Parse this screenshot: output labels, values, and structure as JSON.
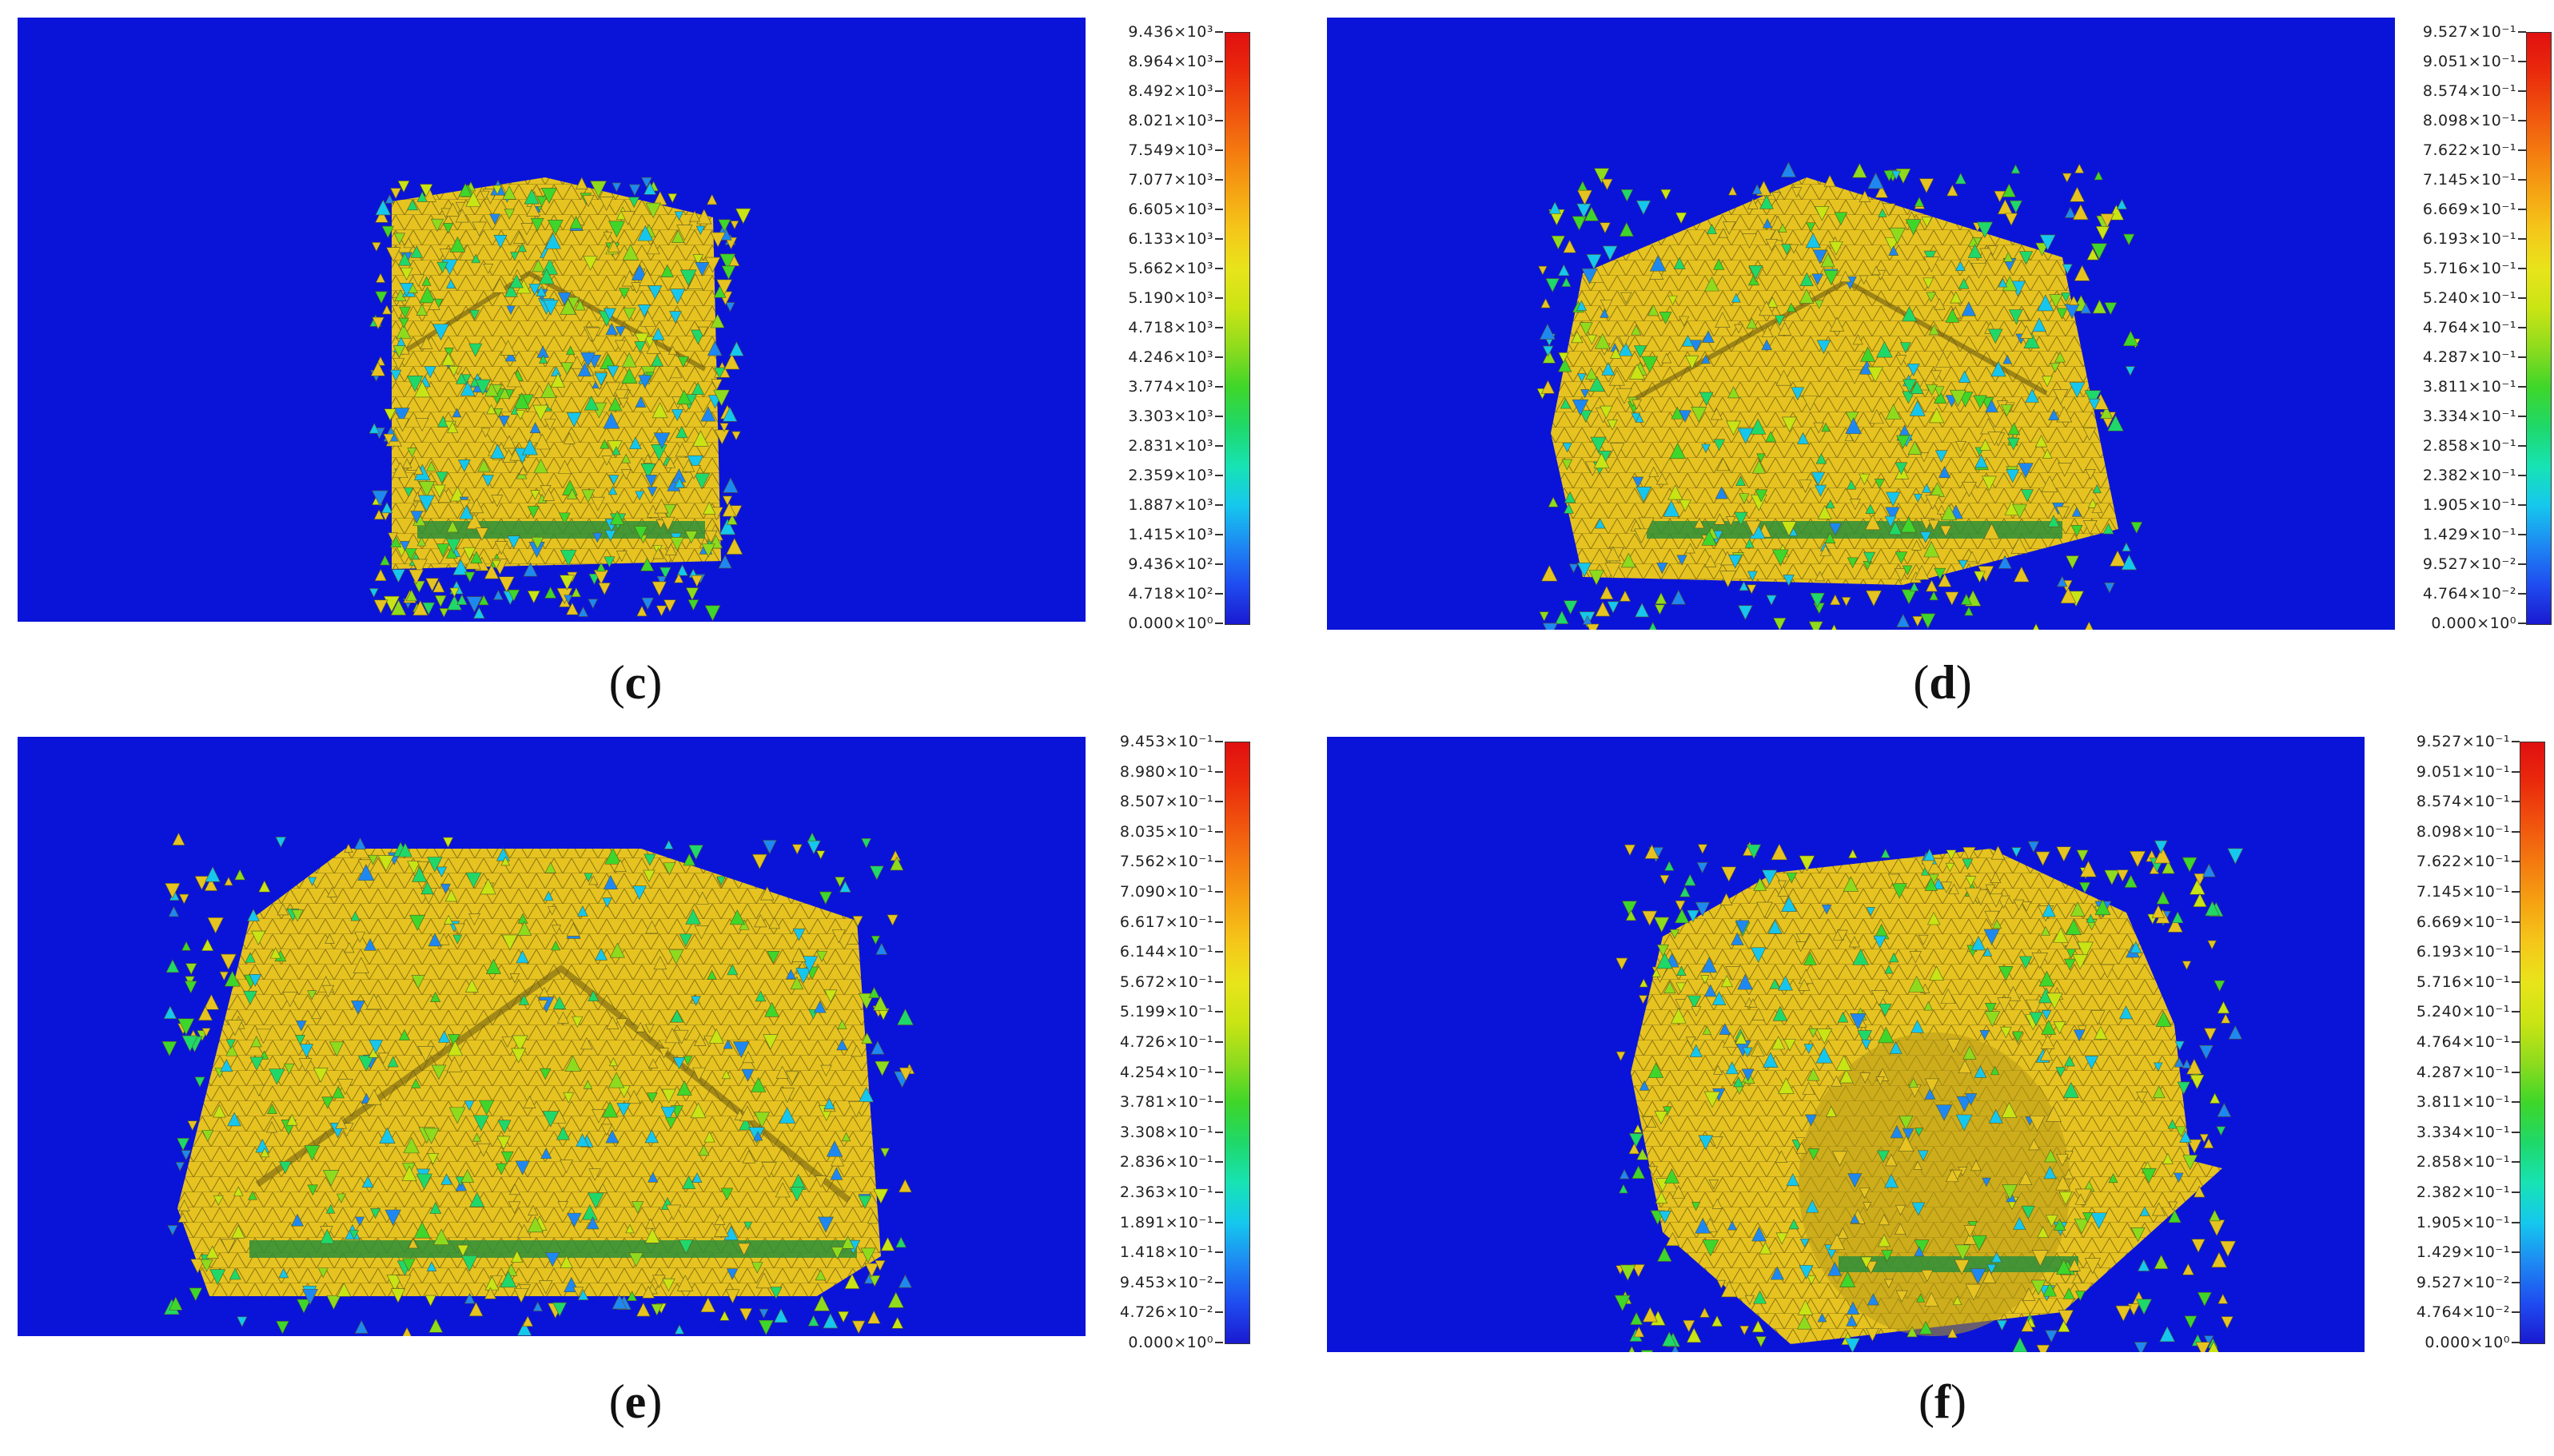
{
  "colors": {
    "background": "#0a14d8",
    "mesh_yellow": "#e6c320",
    "colorbar": [
      "#1a1ad0",
      "#1f4cf0",
      "#1e88f2",
      "#15c7ee",
      "#17e3b4",
      "#1fd86a",
      "#3ed62a",
      "#8edb1e",
      "#c9e414",
      "#e8e41a",
      "#f5c71a",
      "#f5a212",
      "#f47a10",
      "#f0520e",
      "#ea2a0c",
      "#e01010"
    ]
  },
  "panels": [
    {
      "id": "c",
      "label": "c",
      "ticks": [
        "9.436×10³",
        "8.964×10³",
        "8.492×10³",
        "8.021×10³",
        "7.549×10³",
        "7.077×10³",
        "6.605×10³",
        "6.133×10³",
        "5.662×10³",
        "5.190×10³",
        "4.718×10³",
        "4.246×10³",
        "3.774×10³",
        "3.303×10³",
        "2.831×10³",
        "2.359×10³",
        "1.887×10³",
        "1.415×10³",
        "9.436×10²",
        "4.718×10²",
        "0.000×10⁰"
      ]
    },
    {
      "id": "d",
      "label": "d",
      "ticks": [
        "9.527×10⁻¹",
        "9.051×10⁻¹",
        "8.574×10⁻¹",
        "8.098×10⁻¹",
        "7.622×10⁻¹",
        "7.145×10⁻¹",
        "6.669×10⁻¹",
        "6.193×10⁻¹",
        "5.716×10⁻¹",
        "5.240×10⁻¹",
        "4.764×10⁻¹",
        "4.287×10⁻¹",
        "3.811×10⁻¹",
        "3.334×10⁻¹",
        "2.858×10⁻¹",
        "2.382×10⁻¹",
        "1.905×10⁻¹",
        "1.429×10⁻¹",
        "9.527×10⁻²",
        "4.764×10⁻²",
        "0.000×10⁰"
      ]
    },
    {
      "id": "e",
      "label": "e",
      "ticks": [
        "9.453×10⁻¹",
        "8.980×10⁻¹",
        "8.507×10⁻¹",
        "8.035×10⁻¹",
        "7.562×10⁻¹",
        "7.090×10⁻¹",
        "6.617×10⁻¹",
        "6.144×10⁻¹",
        "5.672×10⁻¹",
        "5.199×10⁻¹",
        "4.726×10⁻¹",
        "4.254×10⁻¹",
        "3.781×10⁻¹",
        "3.308×10⁻¹",
        "2.836×10⁻¹",
        "2.363×10⁻¹",
        "1.891×10⁻¹",
        "1.418×10⁻¹",
        "9.453×10⁻²",
        "4.726×10⁻²",
        "0.000×10⁰"
      ]
    },
    {
      "id": "f",
      "label": "f",
      "ticks": [
        "9.527×10⁻¹",
        "9.051×10⁻¹",
        "8.574×10⁻¹",
        "8.098×10⁻¹",
        "7.622×10⁻¹",
        "7.145×10⁻¹",
        "6.669×10⁻¹",
        "6.193×10⁻¹",
        "5.716×10⁻¹",
        "5.240×10⁻¹",
        "4.764×10⁻¹",
        "4.287×10⁻¹",
        "3.811×10⁻¹",
        "3.334×10⁻¹",
        "2.858×10⁻¹",
        "2.382×10⁻¹",
        "1.905×10⁻¹",
        "1.429×10⁻¹",
        "9.527×10⁻²",
        "4.764×10⁻²",
        "0.000×10⁰"
      ]
    }
  ]
}
